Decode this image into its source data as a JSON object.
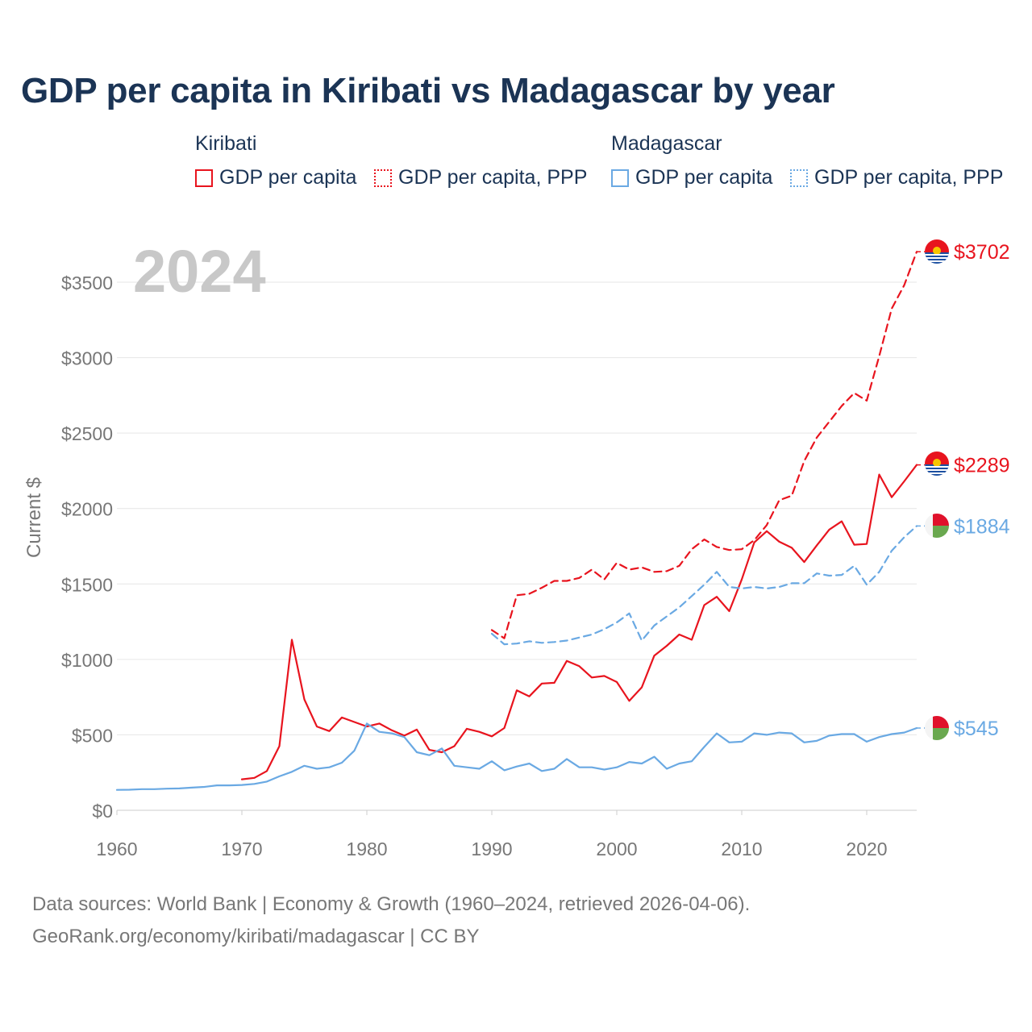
{
  "title": "GDP per capita in Kiribati vs Madagascar by year",
  "legend": {
    "kiribati_title": "Kiribati",
    "madagascar_title": "Madagascar",
    "kiribati_gdp": "GDP per capita",
    "kiribati_ppp": "GDP per capita, PPP",
    "madagascar_gdp": "GDP per capita",
    "madagascar_ppp": "GDP per capita, PPP"
  },
  "colors": {
    "kiribati": "#e8141e",
    "madagascar": "#6aa9e3",
    "grid": "#e6e6e6",
    "axis_text": "#777777",
    "year_watermark": "#c8c8c8"
  },
  "footer": {
    "line1": "Data sources: World Bank | Economy & Growth (1960–2024, retrieved 2026-04-06).",
    "line2": "GeoRank.org/economy/kiribati/madagascar | CC BY"
  },
  "chart_data": {
    "type": "line",
    "title": "GDP per capita in Kiribati vs Madagascar by year",
    "year_label": "2024",
    "ylabel": "Current $",
    "xlabel": "",
    "xlim": [
      1960,
      2024
    ],
    "ylim": [
      0,
      3700
    ],
    "yticks": [
      0,
      500,
      1000,
      1500,
      2000,
      2500,
      3000,
      3500
    ],
    "ytick_labels": [
      "$0",
      "$500",
      "$1000",
      "$1500",
      "$2000",
      "$2500",
      "$3000",
      "$3500"
    ],
    "xticks": [
      1960,
      1970,
      1980,
      1990,
      2000,
      2010,
      2020
    ],
    "xtick_labels": [
      "1960",
      "1970",
      "1980",
      "1990",
      "2000",
      "2010",
      "2020"
    ],
    "series": [
      {
        "name": "Kiribati GDP per capita",
        "key": "kiribati",
        "dashed": false,
        "end_label": "$2289",
        "x": [
          1970,
          1971,
          1972,
          1973,
          1974,
          1975,
          1976,
          1977,
          1978,
          1979,
          1980,
          1981,
          1982,
          1983,
          1984,
          1985,
          1986,
          1987,
          1988,
          1989,
          1990,
          1991,
          1992,
          1993,
          1994,
          1995,
          1996,
          1997,
          1998,
          1999,
          2000,
          2001,
          2002,
          2003,
          2004,
          2005,
          2006,
          2007,
          2008,
          2009,
          2010,
          2011,
          2012,
          2013,
          2014,
          2015,
          2016,
          2017,
          2018,
          2019,
          2020,
          2021,
          2022,
          2023,
          2024
        ],
        "y": [
          205,
          215,
          260,
          425,
          1130,
          735,
          555,
          525,
          615,
          585,
          555,
          575,
          530,
          495,
          535,
          400,
          385,
          425,
          540,
          520,
          490,
          545,
          795,
          755,
          840,
          845,
          990,
          955,
          880,
          890,
          850,
          725,
          815,
          1025,
          1090,
          1165,
          1130,
          1360,
          1415,
          1320,
          1530,
          1775,
          1850,
          1780,
          1740,
          1645,
          1755,
          1860,
          1915,
          1760,
          1765,
          2225,
          2075,
          2180,
          2289
        ]
      },
      {
        "name": "Kiribati GDP per capita, PPP",
        "key": "kiribati",
        "dashed": true,
        "end_label": "$3702",
        "x": [
          1990,
          1991,
          1992,
          1993,
          1994,
          1995,
          1996,
          1997,
          1998,
          1999,
          2000,
          2001,
          2002,
          2003,
          2004,
          2005,
          2006,
          2007,
          2008,
          2009,
          2010,
          2011,
          2012,
          2013,
          2014,
          2015,
          2016,
          2017,
          2018,
          2019,
          2020,
          2021,
          2022,
          2023,
          2024
        ],
        "y": [
          1195,
          1140,
          1425,
          1435,
          1475,
          1520,
          1520,
          1540,
          1595,
          1530,
          1640,
          1595,
          1610,
          1580,
          1585,
          1620,
          1730,
          1795,
          1745,
          1725,
          1730,
          1790,
          1890,
          2055,
          2085,
          2315,
          2470,
          2575,
          2680,
          2765,
          2715,
          3010,
          3325,
          3480,
          3702
        ]
      },
      {
        "name": "Madagascar GDP per capita",
        "key": "madagascar",
        "dashed": false,
        "end_label": "$545",
        "x": [
          1960,
          1961,
          1962,
          1963,
          1964,
          1965,
          1966,
          1967,
          1968,
          1969,
          1970,
          1971,
          1972,
          1973,
          1974,
          1975,
          1976,
          1977,
          1978,
          1979,
          1980,
          1981,
          1982,
          1983,
          1984,
          1985,
          1986,
          1987,
          1988,
          1989,
          1990,
          1991,
          1992,
          1993,
          1994,
          1995,
          1996,
          1997,
          1998,
          1999,
          2000,
          2001,
          2002,
          2003,
          2004,
          2005,
          2006,
          2007,
          2008,
          2009,
          2010,
          2011,
          2012,
          2013,
          2014,
          2015,
          2016,
          2017,
          2018,
          2019,
          2020,
          2021,
          2022,
          2023,
          2024
        ],
        "y": [
          135,
          136,
          140,
          140,
          143,
          145,
          150,
          155,
          165,
          165,
          168,
          175,
          190,
          225,
          255,
          295,
          275,
          285,
          315,
          395,
          575,
          520,
          510,
          485,
          385,
          365,
          410,
          295,
          285,
          275,
          325,
          265,
          290,
          310,
          260,
          275,
          340,
          285,
          285,
          270,
          285,
          320,
          310,
          355,
          275,
          310,
          325,
          420,
          510,
          450,
          455,
          510,
          500,
          515,
          510,
          450,
          460,
          495,
          505,
          505,
          455,
          485,
          505,
          515,
          545
        ]
      },
      {
        "name": "Madagascar GDP per capita, PPP",
        "key": "madagascar",
        "dashed": true,
        "end_label": "$1884",
        "x": [
          1990,
          1991,
          1992,
          1993,
          1994,
          1995,
          1996,
          1997,
          1998,
          1999,
          2000,
          2001,
          2002,
          2003,
          2004,
          2005,
          2006,
          2007,
          2008,
          2009,
          2010,
          2011,
          2012,
          2013,
          2014,
          2015,
          2016,
          2017,
          2018,
          2019,
          2020,
          2021,
          2022,
          2023,
          2024
        ],
        "y": [
          1170,
          1100,
          1105,
          1120,
          1110,
          1115,
          1125,
          1145,
          1165,
          1200,
          1245,
          1305,
          1125,
          1225,
          1285,
          1345,
          1420,
          1495,
          1580,
          1480,
          1470,
          1480,
          1470,
          1480,
          1505,
          1505,
          1570,
          1555,
          1560,
          1620,
          1495,
          1580,
          1720,
          1810,
          1884
        ]
      }
    ]
  }
}
